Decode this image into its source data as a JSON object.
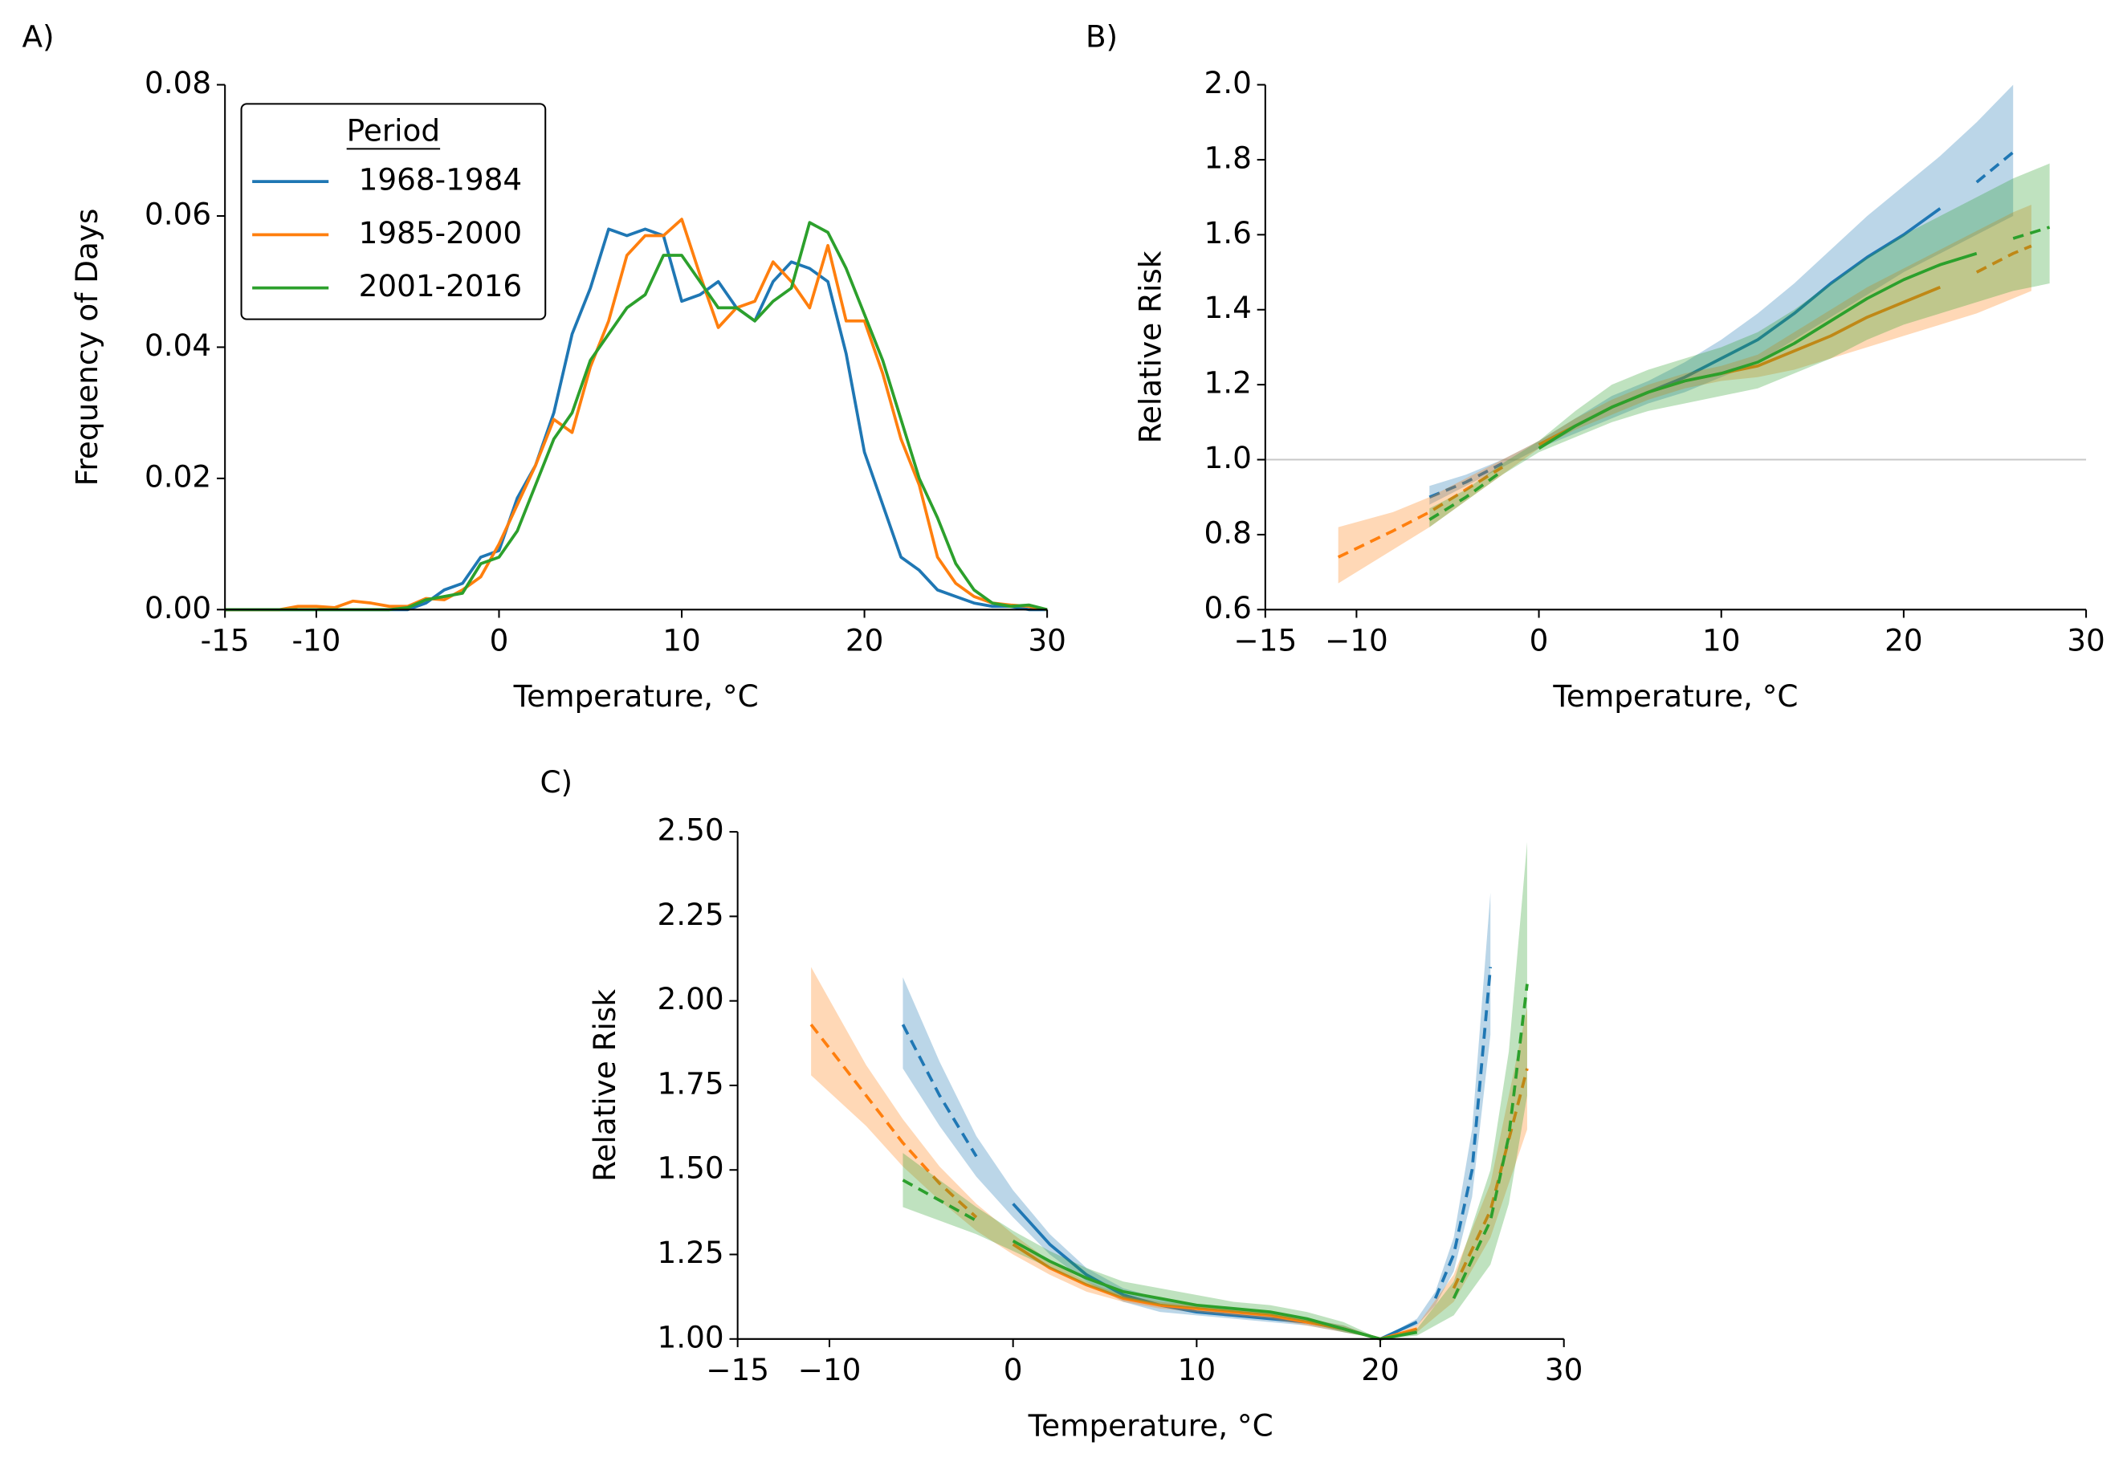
{
  "chart_data": [
    {
      "type": "line",
      "panel_label": "A)",
      "x_label": "Temperature, °C",
      "y_label": "Frequency of Days",
      "legend_title": "Period",
      "legend": "upper left",
      "x": [
        -15,
        -14,
        -13,
        -12,
        -11,
        -10,
        -9,
        -8,
        -7,
        -6,
        -5,
        -4,
        -3,
        -2,
        -1,
        0,
        1,
        2,
        3,
        4,
        5,
        6,
        7,
        8,
        9,
        10,
        11,
        12,
        13,
        14,
        15,
        16,
        17,
        18,
        19,
        20,
        21,
        22,
        23,
        24,
        25,
        26,
        27,
        28,
        29,
        30
      ],
      "series": [
        {
          "name": "1968-1984",
          "color": "#1f77b4",
          "values": [
            0,
            0,
            0,
            0,
            0,
            0,
            0,
            0,
            0,
            0,
            0,
            0.001,
            0.003,
            0.004,
            0.008,
            0.009,
            0.017,
            0.022,
            0.03,
            0.042,
            0.049,
            0.058,
            0.057,
            0.058,
            0.057,
            0.047,
            0.048,
            0.05,
            0.046,
            0.044,
            0.05,
            0.053,
            0.052,
            0.05,
            0.039,
            0.024,
            0.016,
            0.008,
            0.006,
            0.003,
            0.002,
            0.001,
            0.0005,
            0.0005,
            0,
            0
          ]
        },
        {
          "name": "1985-2000",
          "color": "#ff7f0e",
          "values": [
            0,
            0,
            0,
            0,
            0.0005,
            0.0005,
            0.0003,
            0.0013,
            0.001,
            0.0005,
            0.0005,
            0.0017,
            0.0015,
            0.003,
            0.005,
            0.01,
            0.016,
            0.022,
            0.029,
            0.027,
            0.037,
            0.044,
            0.054,
            0.057,
            0.057,
            0.0595,
            0.051,
            0.043,
            0.046,
            0.047,
            0.053,
            0.05,
            0.046,
            0.0555,
            0.044,
            0.044,
            0.036,
            0.026,
            0.019,
            0.008,
            0.004,
            0.002,
            0.001,
            0.0007,
            0.0005,
            0
          ]
        },
        {
          "name": "2001-2016",
          "color": "#2ca02c",
          "values": [
            0,
            0,
            0,
            0,
            0,
            0,
            0,
            0,
            0,
            0,
            0.0003,
            0.0015,
            0.002,
            0.0025,
            0.007,
            0.008,
            0.012,
            0.019,
            0.026,
            0.03,
            0.038,
            0.042,
            0.046,
            0.048,
            0.054,
            0.054,
            0.05,
            0.046,
            0.046,
            0.044,
            0.047,
            0.049,
            0.059,
            0.0575,
            0.052,
            0.045,
            0.038,
            0.029,
            0.02,
            0.014,
            0.007,
            0.003,
            0.001,
            0.0005,
            0.0007,
            0
          ]
        }
      ],
      "xlim": [
        -15,
        30
      ],
      "xticks": [
        -15,
        -10,
        0,
        10,
        20,
        30
      ],
      "ylim": [
        0,
        0.08
      ],
      "yticks": [
        {
          "value": 0,
          "label": "0.00"
        },
        {
          "value": 0.02,
          "label": "0.02"
        },
        {
          "value": 0.04,
          "label": "0.04"
        },
        {
          "value": 0.06,
          "label": "0.06"
        },
        {
          "value": 0.08,
          "label": "0.08"
        }
      ]
    },
    {
      "type": "line",
      "panel_label": "B)",
      "x_label": "Temperature, °C",
      "y_label": "Relative Risk",
      "reference_line": 1,
      "series": [
        {
          "color": "#1f77b4",
          "solid_range": [
            0,
            22
          ],
          "x": [
            -6,
            -4,
            -2,
            0,
            2,
            4,
            6,
            8,
            10,
            12,
            14,
            16,
            18,
            20,
            22,
            24,
            26
          ],
          "values": [
            0.9,
            0.94,
            0.99,
            1.04,
            1.09,
            1.14,
            1.18,
            1.22,
            1.27,
            1.32,
            1.39,
            1.47,
            1.54,
            1.6,
            1.67,
            1.74,
            1.82
          ],
          "lower": [
            0.88,
            0.93,
            0.98,
            1.03,
            1.07,
            1.11,
            1.15,
            1.18,
            1.22,
            1.26,
            1.32,
            1.38,
            1.44,
            1.5,
            1.55,
            1.6,
            1.65
          ],
          "upper": [
            0.93,
            0.96,
            1.0,
            1.05,
            1.11,
            1.17,
            1.21,
            1.26,
            1.32,
            1.39,
            1.47,
            1.56,
            1.65,
            1.73,
            1.81,
            1.9,
            2.0
          ]
        },
        {
          "color": "#ff7f0e",
          "solid_range": [
            0,
            22
          ],
          "x": [
            -11,
            -8,
            -6,
            -4,
            -2,
            0,
            2,
            4,
            6,
            8,
            10,
            12,
            14,
            16,
            18,
            20,
            22,
            24,
            26,
            27
          ],
          "values": [
            0.74,
            0.81,
            0.86,
            0.92,
            0.98,
            1.04,
            1.09,
            1.14,
            1.18,
            1.21,
            1.23,
            1.25,
            1.29,
            1.33,
            1.38,
            1.42,
            1.46,
            1.5,
            1.55,
            1.57
          ],
          "lower": [
            0.67,
            0.76,
            0.82,
            0.89,
            0.96,
            1.03,
            1.08,
            1.12,
            1.16,
            1.19,
            1.21,
            1.22,
            1.24,
            1.27,
            1.3,
            1.33,
            1.36,
            1.39,
            1.43,
            1.45
          ],
          "upper": [
            0.82,
            0.86,
            0.9,
            0.95,
            1.0,
            1.05,
            1.11,
            1.16,
            1.2,
            1.23,
            1.25,
            1.28,
            1.34,
            1.4,
            1.46,
            1.51,
            1.56,
            1.61,
            1.66,
            1.68
          ]
        },
        {
          "color": "#2ca02c",
          "solid_range": [
            0,
            24
          ],
          "x": [
            -6,
            -4,
            -2,
            0,
            2,
            4,
            6,
            8,
            10,
            12,
            14,
            16,
            18,
            20,
            22,
            24,
            26,
            28
          ],
          "values": [
            0.84,
            0.9,
            0.97,
            1.03,
            1.09,
            1.14,
            1.18,
            1.21,
            1.23,
            1.26,
            1.31,
            1.37,
            1.43,
            1.48,
            1.52,
            1.55,
            1.59,
            1.62
          ],
          "lower": [
            0.82,
            0.89,
            0.96,
            1.02,
            1.06,
            1.1,
            1.13,
            1.15,
            1.17,
            1.19,
            1.23,
            1.27,
            1.32,
            1.36,
            1.39,
            1.42,
            1.45,
            1.47
          ],
          "upper": [
            0.87,
            0.92,
            0.99,
            1.05,
            1.13,
            1.2,
            1.24,
            1.27,
            1.3,
            1.34,
            1.4,
            1.47,
            1.54,
            1.6,
            1.65,
            1.7,
            1.75,
            1.79
          ]
        }
      ],
      "xlim": [
        -15,
        30
      ],
      "xticks": [
        {
          "value": -15,
          "label": "−15"
        },
        {
          "value": -10,
          "label": "−10"
        },
        0,
        10,
        20,
        30
      ],
      "ylim": [
        0.6,
        2.0
      ],
      "yticks": [
        0.6,
        0.8,
        {
          "value": 1,
          "label": "1.0"
        },
        1.2,
        1.4,
        1.6,
        1.8,
        {
          "value": 2,
          "label": "2.0"
        }
      ]
    },
    {
      "type": "line",
      "panel_label": "C)",
      "x_label": "Temperature, °C",
      "y_label": "Relative Risk",
      "reference_line": 1,
      "series": [
        {
          "color": "#1f77b4",
          "solid_range": [
            0,
            22
          ],
          "x": [
            -6,
            -4,
            -2,
            0,
            2,
            4,
            6,
            8,
            10,
            12,
            14,
            16,
            18,
            20,
            22,
            23,
            24,
            25,
            26
          ],
          "values": [
            1.93,
            1.72,
            1.54,
            1.4,
            1.28,
            1.19,
            1.13,
            1.1,
            1.08,
            1.07,
            1.06,
            1.05,
            1.03,
            1.0,
            1.05,
            1.12,
            1.25,
            1.5,
            2.1
          ],
          "lower": [
            1.8,
            1.63,
            1.48,
            1.36,
            1.25,
            1.17,
            1.11,
            1.08,
            1.07,
            1.06,
            1.05,
            1.04,
            1.02,
            1.0,
            1.04,
            1.1,
            1.2,
            1.42,
            1.9
          ],
          "upper": [
            2.07,
            1.82,
            1.6,
            1.44,
            1.31,
            1.21,
            1.15,
            1.12,
            1.1,
            1.09,
            1.08,
            1.06,
            1.04,
            1.0,
            1.06,
            1.14,
            1.3,
            1.62,
            2.32
          ]
        },
        {
          "color": "#ff7f0e",
          "solid_range": [
            0,
            22
          ],
          "x": [
            -11,
            -8,
            -6,
            -4,
            -2,
            0,
            2,
            4,
            6,
            8,
            10,
            12,
            14,
            16,
            18,
            20,
            22,
            24,
            26,
            28
          ],
          "values": [
            1.93,
            1.72,
            1.58,
            1.46,
            1.36,
            1.28,
            1.21,
            1.16,
            1.12,
            1.1,
            1.09,
            1.08,
            1.07,
            1.05,
            1.03,
            1.0,
            1.03,
            1.15,
            1.38,
            1.8
          ],
          "lower": [
            1.78,
            1.63,
            1.51,
            1.41,
            1.32,
            1.25,
            1.19,
            1.14,
            1.11,
            1.09,
            1.08,
            1.07,
            1.06,
            1.04,
            1.02,
            1.0,
            1.02,
            1.11,
            1.3,
            1.62
          ],
          "upper": [
            2.1,
            1.81,
            1.65,
            1.51,
            1.4,
            1.31,
            1.23,
            1.17,
            1.13,
            1.11,
            1.1,
            1.09,
            1.08,
            1.06,
            1.04,
            1.0,
            1.04,
            1.19,
            1.46,
            1.98
          ]
        },
        {
          "color": "#2ca02c",
          "solid_range": [
            0,
            22
          ],
          "x": [
            -6,
            -4,
            -2,
            0,
            2,
            4,
            6,
            8,
            10,
            12,
            14,
            16,
            18,
            20,
            22,
            24,
            26,
            27,
            28
          ],
          "values": [
            1.47,
            1.41,
            1.35,
            1.29,
            1.23,
            1.18,
            1.14,
            1.12,
            1.1,
            1.09,
            1.08,
            1.06,
            1.03,
            1.0,
            1.02,
            1.12,
            1.35,
            1.6,
            2.05
          ],
          "lower": [
            1.39,
            1.35,
            1.31,
            1.26,
            1.21,
            1.16,
            1.12,
            1.1,
            1.09,
            1.08,
            1.07,
            1.05,
            1.02,
            1.0,
            1.01,
            1.07,
            1.22,
            1.4,
            1.72
          ],
          "upper": [
            1.55,
            1.47,
            1.39,
            1.32,
            1.26,
            1.21,
            1.17,
            1.15,
            1.13,
            1.11,
            1.1,
            1.08,
            1.05,
            1.0,
            1.03,
            1.17,
            1.5,
            1.85,
            2.47
          ]
        }
      ],
      "xlim": [
        -15,
        30
      ],
      "xticks": [
        {
          "value": -15,
          "label": "−15"
        },
        {
          "value": -10,
          "label": "−10"
        },
        0,
        10,
        20,
        30
      ],
      "ylim": [
        1.0,
        2.5
      ],
      "yticks": [
        {
          "value": 1,
          "label": "1.00"
        },
        {
          "value": 1.25,
          "label": "1.25"
        },
        {
          "value": 1.5,
          "label": "1.50"
        },
        {
          "value": 1.75,
          "label": "1.75"
        },
        {
          "value": 2,
          "label": "2.00"
        },
        {
          "value": 2.25,
          "label": "2.25"
        },
        {
          "value": 2.5,
          "label": "2.50"
        }
      ]
    }
  ]
}
